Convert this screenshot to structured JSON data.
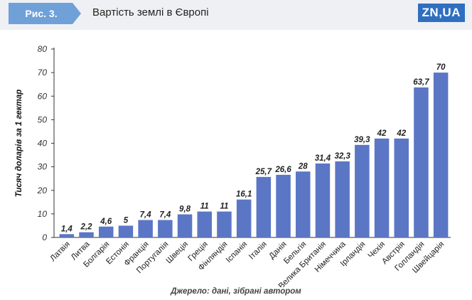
{
  "header": {
    "badge": "Рис. 3.",
    "title": "Вартість землі в Європі",
    "logo": "ZN,UA"
  },
  "colors": {
    "bar": "#5b76c4",
    "badge": "#6fa0d8",
    "header_bg": "#eef0f3",
    "logo_bg": "#2f6fc0"
  },
  "chart_data": {
    "type": "bar",
    "categories": [
      "Латвія",
      "Литва",
      "Болгарія",
      "Естонія",
      "Франція",
      "Португалія",
      "Швеція",
      "Греція",
      "Фінляндія",
      "Іспанія",
      "Італія",
      "Данія",
      "Бельгія",
      "Велика Британія",
      "Німеччина",
      "Ірландія",
      "Чехія",
      "Австрія",
      "Голландія",
      "Швейцарія"
    ],
    "values": [
      1.4,
      2.2,
      4.6,
      5,
      7.4,
      7.4,
      9.8,
      11,
      11,
      16.1,
      25.7,
      26.6,
      28,
      31.4,
      32.3,
      39.3,
      42,
      42,
      63.7,
      70
    ],
    "value_labels": [
      "1,4",
      "2,2",
      "4,6",
      "5",
      "7,4",
      "7,4",
      "9,8",
      "11",
      "11",
      "16,1",
      "25,7",
      "26,6",
      "28",
      "31,4",
      "32,3",
      "39,3",
      "42",
      "42",
      "63,7",
      "70"
    ],
    "ylabel": "Тисяч доларів за 1 гектар",
    "xlabel": "",
    "ylim": [
      0,
      80
    ],
    "yticks": [
      0,
      10,
      20,
      30,
      40,
      50,
      60,
      70,
      80
    ],
    "grid": false
  },
  "source": "Джерело: дані, зібрані автором"
}
